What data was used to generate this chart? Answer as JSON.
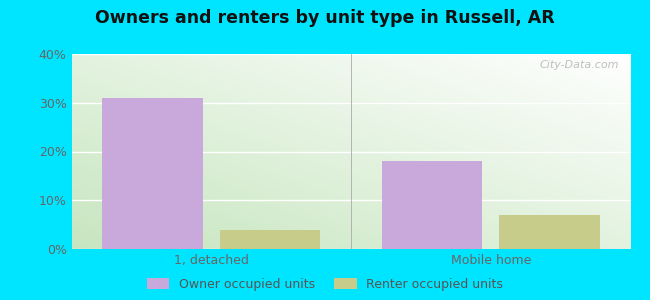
{
  "title": "Owners and renters by unit type in Russell, AR",
  "categories": [
    "1, detached",
    "Mobile home"
  ],
  "owner_values": [
    31,
    18
  ],
  "renter_values": [
    4,
    7
  ],
  "owner_color": "#c9a8dc",
  "renter_color": "#c8cc8a",
  "owner_label": "Owner occupied units",
  "renter_label": "Renter occupied units",
  "ylim": [
    0,
    40
  ],
  "yticks": [
    0,
    10,
    20,
    30,
    40
  ],
  "yticklabels": [
    "0%",
    "10%",
    "20%",
    "30%",
    "40%"
  ],
  "background_outer": "#00e5ff",
  "watermark": "City-Data.com",
  "bar_width": 0.18,
  "group_centers": [
    0.3,
    0.8
  ]
}
